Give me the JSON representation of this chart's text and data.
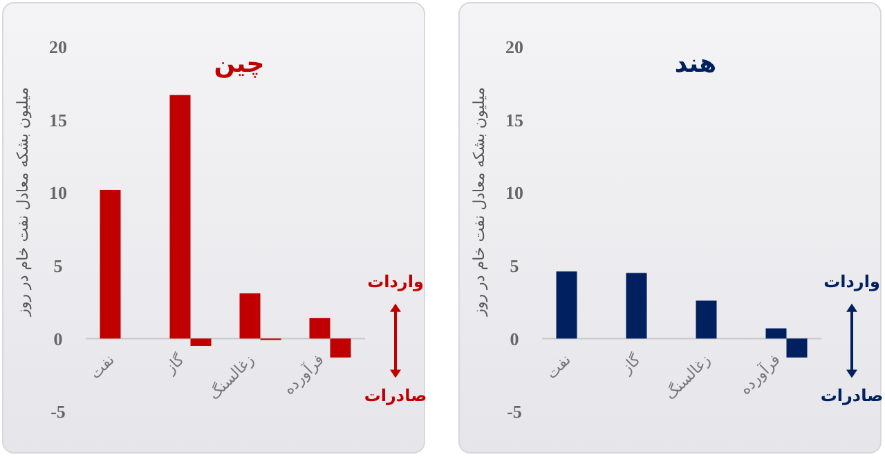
{
  "chart_data": [
    {
      "type": "bar",
      "title": "چین",
      "ylabel": "میلیون بشکه معادل نفت خام در روز",
      "categories": [
        "نفت",
        "گاز",
        "زغالسنگ",
        "فرآورده"
      ],
      "series": [
        {
          "name": "واردات",
          "color": "#c00000",
          "values": [
            10.2,
            16.7,
            3.1,
            1.4
          ]
        },
        {
          "name": "صادرات",
          "color": "#c00000",
          "values": [
            null,
            -0.5,
            -0.1,
            -1.3
          ]
        }
      ],
      "ylim": [
        -5,
        20
      ],
      "yticks": [
        -5,
        0,
        5,
        10,
        15,
        20
      ],
      "grid": false,
      "legend": "right"
    },
    {
      "type": "bar",
      "title": "هند",
      "ylabel": "میلیون بشکه معادل نفت خام در روز",
      "categories": [
        "نفت",
        "گاز",
        "زغالسنگ",
        "فرآورده"
      ],
      "series": [
        {
          "name": "واردات",
          "color": "#002060",
          "values": [
            4.6,
            4.5,
            2.6,
            0.7
          ]
        },
        {
          "name": "صادرات",
          "color": "#002060",
          "values": [
            null,
            null,
            null,
            -1.3
          ]
        }
      ],
      "ylim": [
        -5,
        20
      ],
      "yticks": [
        -5,
        0,
        5,
        10,
        15,
        20
      ],
      "grid": false,
      "legend": "right"
    }
  ]
}
